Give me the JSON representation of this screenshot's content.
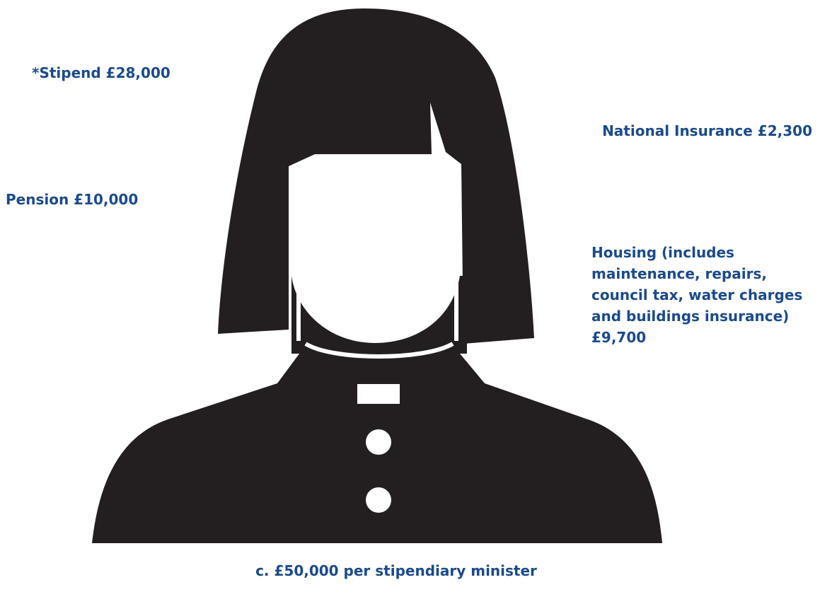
{
  "labels": {
    "stipend": "*Stipend £28,000",
    "national_insurance": "National Insurance £2,300",
    "pension": "Pension £10,000",
    "housing": "Housing (includes maintenance, repairs, council tax, water charges and buildings insurance) £9,700"
  },
  "total": "c. £50,000 per stipendiary minister"
}
